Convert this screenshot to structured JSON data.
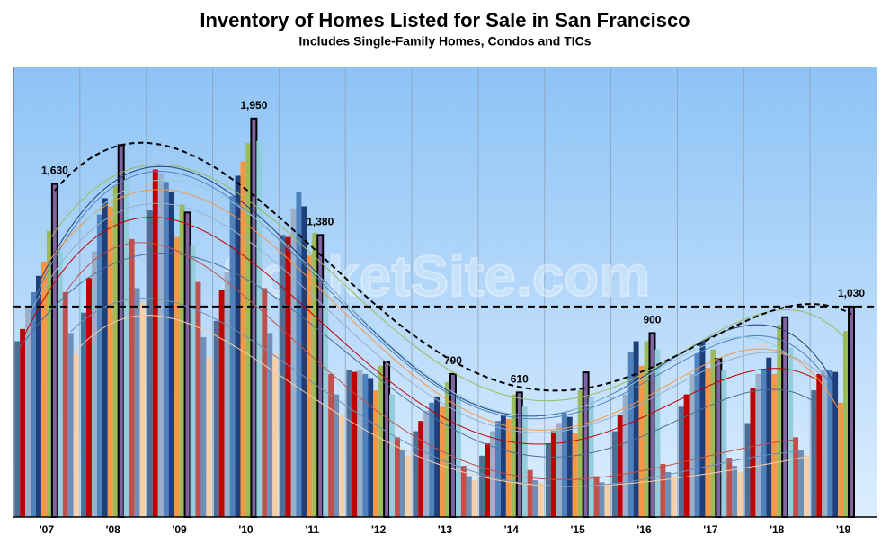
{
  "chart_data": {
    "type": "bar",
    "title": "Inventory of Homes Listed for Sale in San Francisco",
    "subtitle": "Includes Single-Family Homes, Condos and TICs",
    "watermark": "SocketSite.com",
    "categories": [
      "'07",
      "'08",
      "'09",
      "'10",
      "'11",
      "'12",
      "'13",
      "'14",
      "'15",
      "'16",
      "'17",
      "'18",
      "'19"
    ],
    "ylim": [
      0,
      2200
    ],
    "grid": true,
    "series": [
      {
        "color": "#4e6e95",
        "values": [
          860,
          1000,
          1500,
          960,
          1380,
          720,
          420,
          300,
          360,
          420,
          540,
          460,
          620
        ]
      },
      {
        "color": "#c00000",
        "values": [
          920,
          1170,
          1700,
          1110,
          1370,
          710,
          470,
          360,
          420,
          500,
          600,
          630,
          700
        ]
      },
      {
        "color": "#9bb0c8",
        "values": [
          1020,
          1300,
          1680,
          1200,
          1510,
          720,
          520,
          420,
          460,
          600,
          700,
          700,
          720
        ]
      },
      {
        "color": "#4f81bd",
        "values": [
          1100,
          1480,
          1640,
          1570,
          1590,
          700,
          560,
          470,
          510,
          810,
          800,
          720,
          720
        ]
      },
      {
        "color": "#1f3f7a",
        "values": [
          1180,
          1560,
          1590,
          1670,
          1520,
          680,
          590,
          500,
          490,
          860,
          860,
          780,
          710
        ]
      },
      {
        "color": "#f79646",
        "values": [
          1250,
          1520,
          1370,
          1740,
          1280,
          620,
          540,
          480,
          410,
          740,
          730,
          700,
          560
        ]
      },
      {
        "color": "#9bbb59",
        "values": [
          1400,
          1620,
          1530,
          1830,
          1390,
          740,
          660,
          600,
          620,
          860,
          820,
          940,
          910
        ]
      },
      {
        "color": "#8064a2",
        "outline": "#000000",
        "values": [
          1630,
          1820,
          1490,
          1950,
          1380,
          757,
          700,
          610,
          708,
          900,
          774,
          978,
          1030
        ],
        "value_labels": [
          "1,630",
          null,
          null,
          "1,950",
          "1,380",
          null,
          "700",
          "610",
          null,
          "900",
          null,
          null,
          "1,030"
        ]
      },
      {
        "color": "#93cddd",
        "values": [
          1300,
          1650,
          1330,
          1840,
          1150,
          600,
          600,
          540,
          590,
          820,
          720,
          830,
          null
        ]
      },
      {
        "color": "#c0504d",
        "values": [
          1100,
          1360,
          1150,
          1120,
          700,
          390,
          250,
          230,
          200,
          260,
          290,
          390,
          null
        ]
      },
      {
        "color": "#6d8fb8",
        "values": [
          900,
          1120,
          880,
          900,
          600,
          330,
          200,
          180,
          170,
          220,
          250,
          330,
          null
        ]
      },
      {
        "color": "#f4cfa8",
        "values": [
          800,
          1050,
          780,
          800,
          500,
          300,
          180,
          170,
          160,
          200,
          220,
          300,
          null
        ]
      }
    ]
  }
}
